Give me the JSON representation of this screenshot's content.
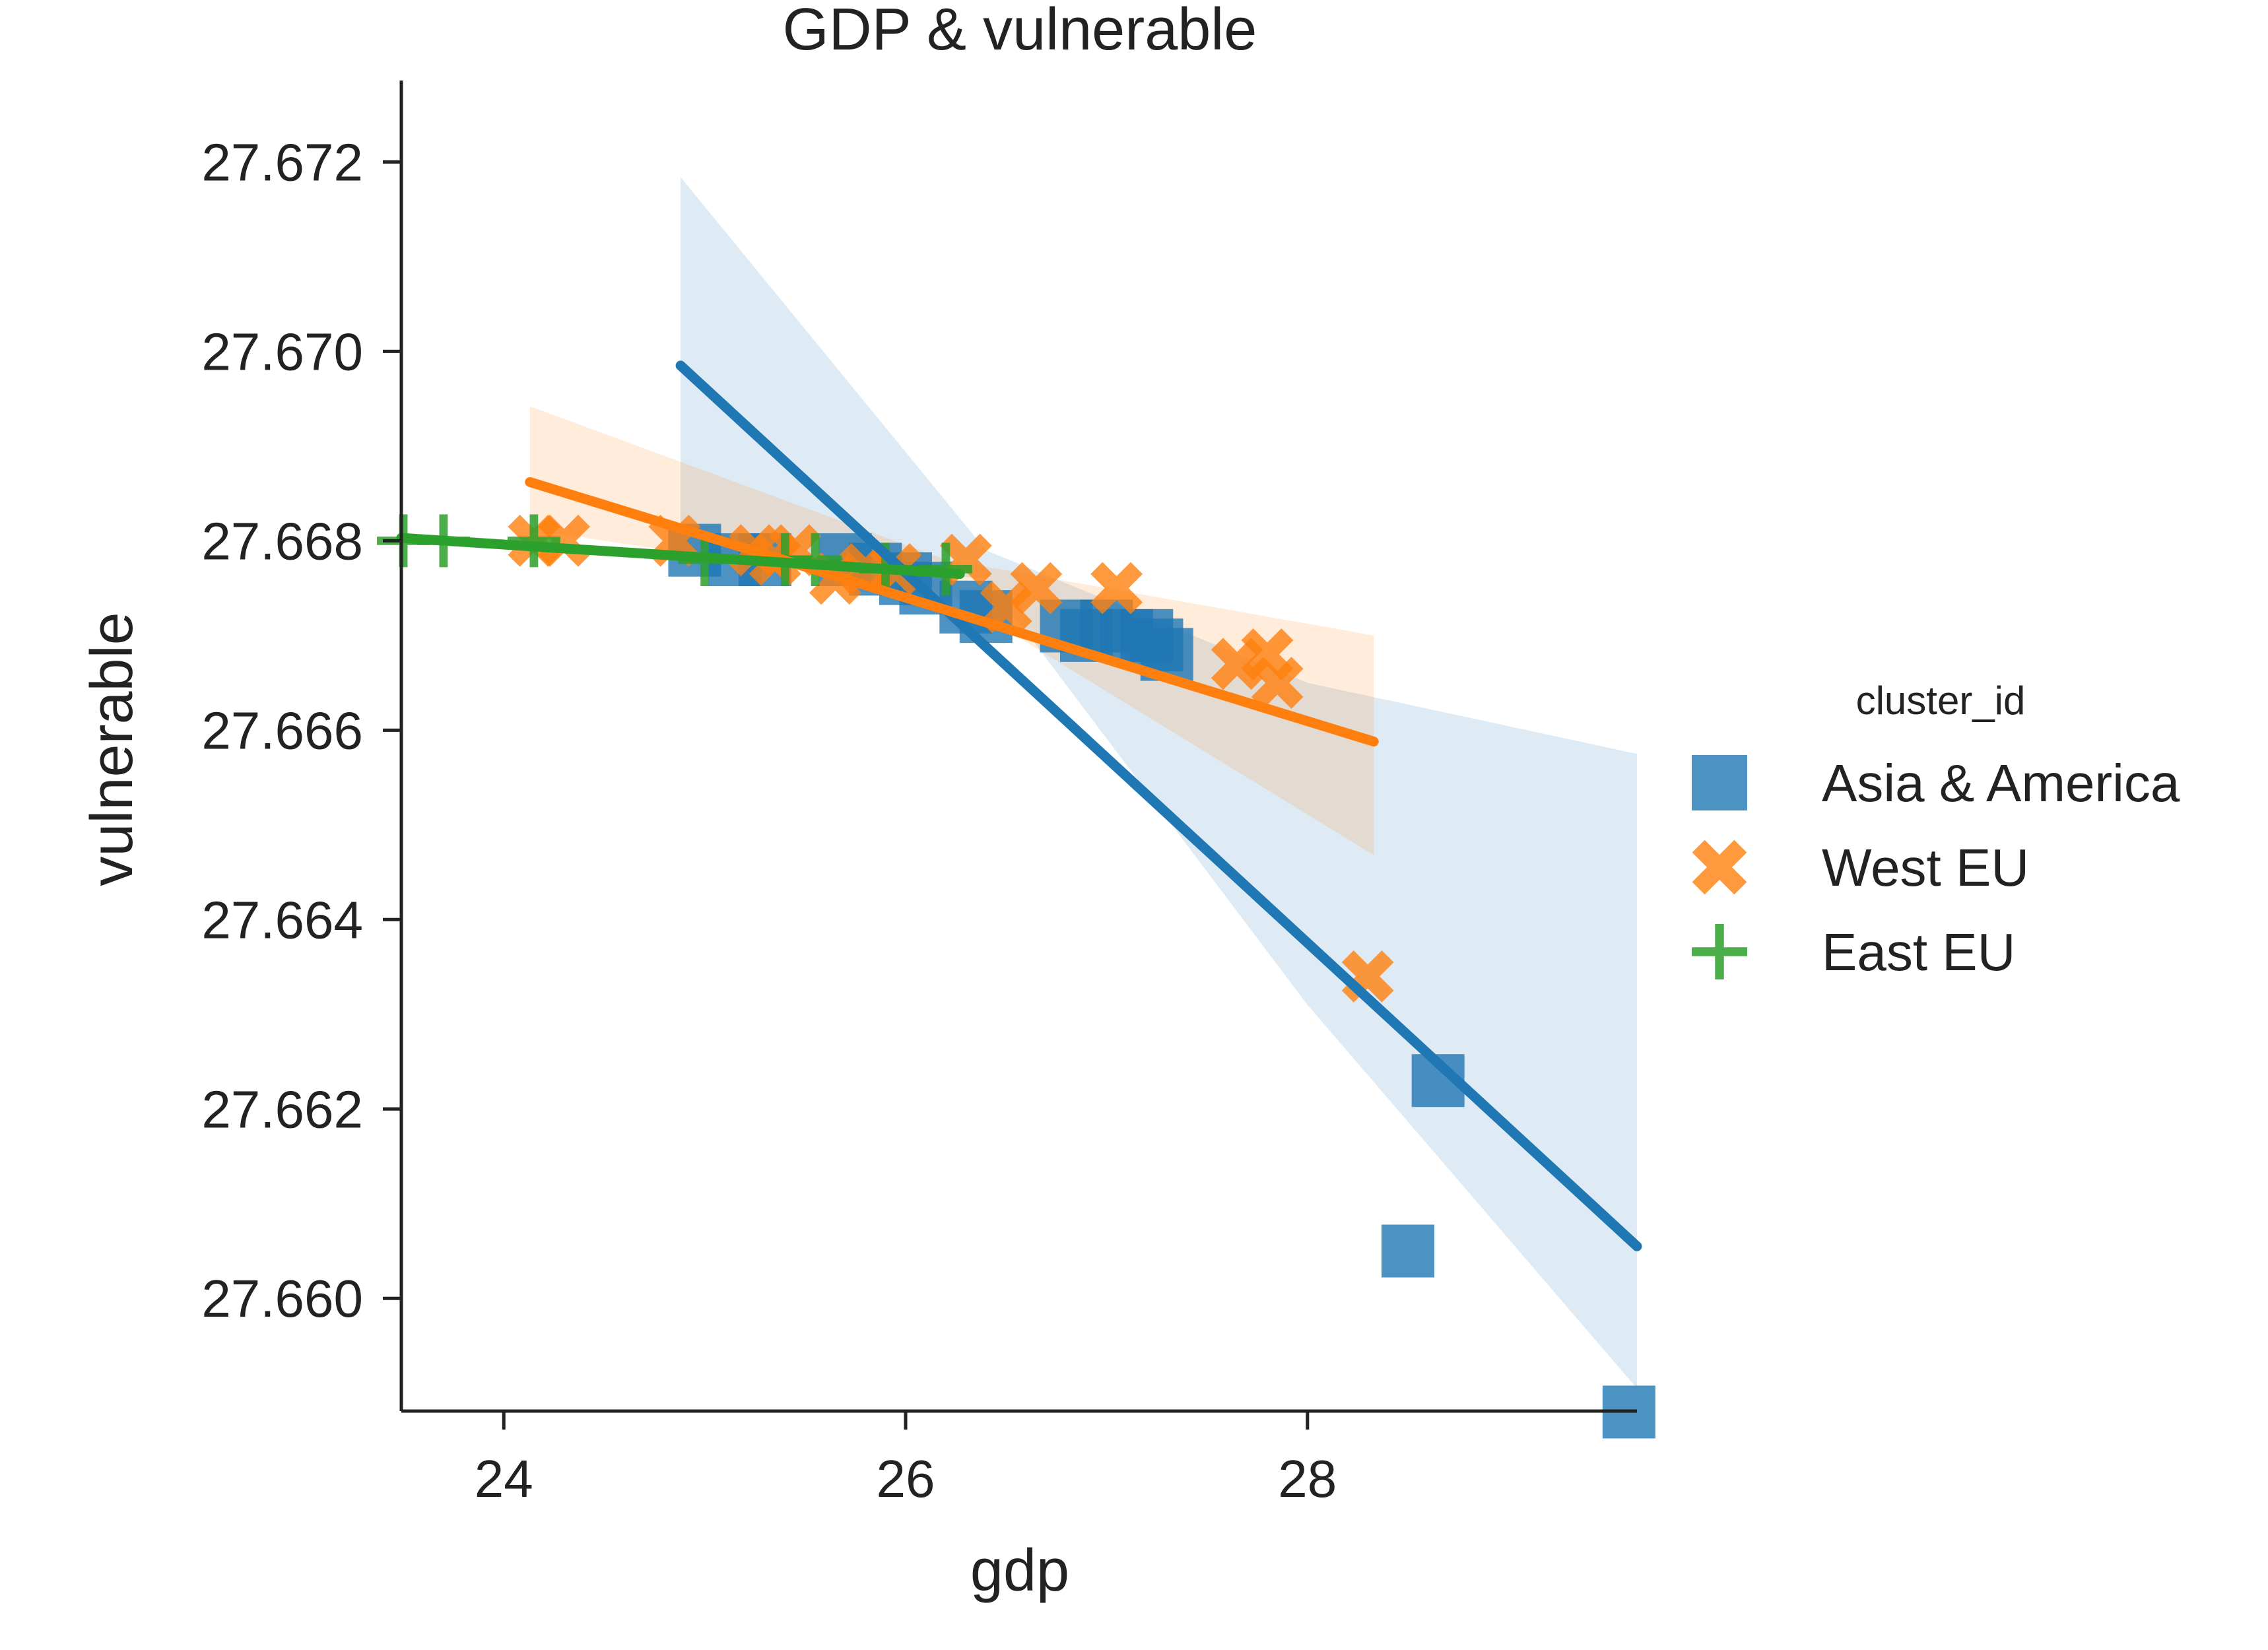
{
  "chart_data": {
    "type": "scatter",
    "title": "GDP & vulnerable",
    "xlabel": "gdp",
    "ylabel": "vulnerable",
    "xlim": [
      23.49,
      29.64
    ],
    "ylim": [
      27.65881,
      27.67286
    ],
    "xticks": [
      24,
      26,
      28
    ],
    "xtick_labels": [
      "24",
      "26",
      "28"
    ],
    "yticks": [
      27.66,
      27.662,
      27.664,
      27.666,
      27.668,
      27.67,
      27.672
    ],
    "ytick_labels": [
      "27.660",
      "27.662",
      "27.664",
      "27.666",
      "27.668",
      "27.670",
      "27.672"
    ],
    "grid": false,
    "legend": {
      "title": "cluster_id",
      "placement": "right"
    },
    "series": [
      {
        "name": "Asia & America",
        "color": "#1f77b4",
        "marker": "square",
        "points": [
          [
            24.95,
            27.6679
          ],
          [
            25.15,
            27.6678
          ],
          [
            25.3,
            27.6678
          ],
          [
            25.7,
            27.6678
          ],
          [
            25.85,
            27.6677
          ],
          [
            26.0,
            27.6676
          ],
          [
            26.1,
            27.6675
          ],
          [
            26.3,
            27.6673
          ],
          [
            26.4,
            27.6672
          ],
          [
            26.8,
            27.6671
          ],
          [
            26.9,
            27.667
          ],
          [
            27.0,
            27.6671
          ],
          [
            27.1,
            27.667
          ],
          [
            27.2,
            27.667
          ],
          [
            27.25,
            27.6669
          ],
          [
            27.3,
            27.6668
          ],
          [
            28.5,
            27.6605
          ],
          [
            28.65,
            27.6623
          ],
          [
            29.6,
            27.6588
          ]
        ],
        "fit": {
          "x": [
            24.88,
            29.64
          ],
          "y": [
            27.66985,
            27.66055
          ]
        },
        "ci_upper": [
          [
            24.88,
            27.67184
          ],
          [
            26.4,
            27.6679
          ],
          [
            28.0,
            27.6665
          ],
          [
            29.64,
            27.66575
          ]
        ],
        "ci_lower": [
          [
            24.88,
            27.66785
          ],
          [
            26.4,
            27.6676
          ],
          [
            28.0,
            27.6631
          ],
          [
            29.64,
            27.65905
          ]
        ]
      },
      {
        "name": "West EU",
        "color": "#ff7f0e",
        "marker": "x",
        "points": [
          [
            24.15,
            27.668
          ],
          [
            24.3,
            27.668
          ],
          [
            24.85,
            27.668
          ],
          [
            25.25,
            27.6679
          ],
          [
            25.35,
            27.6678
          ],
          [
            25.45,
            27.6679
          ],
          [
            25.65,
            27.6676
          ],
          [
            25.8,
            27.6677
          ],
          [
            25.95,
            27.6677
          ],
          [
            26.3,
            27.6678
          ],
          [
            26.5,
            27.6673
          ],
          [
            26.65,
            27.6675
          ],
          [
            27.05,
            27.6675
          ],
          [
            27.65,
            27.6667
          ],
          [
            27.8,
            27.6668
          ],
          [
            27.85,
            27.6665
          ],
          [
            28.3,
            27.6634
          ]
        ],
        "fit": {
          "x": [
            24.13,
            28.33
          ],
          "y": [
            27.66862,
            27.66588
          ]
        },
        "ci_upper": [
          [
            24.13,
            27.66942
          ],
          [
            26.2,
            27.6678
          ],
          [
            28.33,
            27.667
          ]
        ],
        "ci_lower": [
          [
            24.13,
            27.66812
          ],
          [
            26.2,
            27.66745
          ],
          [
            28.33,
            27.66468
          ]
        ]
      },
      {
        "name": "East EU",
        "color": "#2ca02c",
        "marker": "plus",
        "points": [
          [
            23.5,
            27.668
          ],
          [
            23.7,
            27.668
          ],
          [
            24.15,
            27.668
          ],
          [
            25.0,
            27.6678
          ],
          [
            25.4,
            27.6678
          ],
          [
            25.55,
            27.6678
          ],
          [
            25.9,
            27.6677
          ],
          [
            26.2,
            27.6677
          ]
        ],
        "fit": {
          "x": [
            23.49,
            26.27
          ],
          "y": [
            27.66803,
            27.66765
          ]
        }
      }
    ]
  }
}
